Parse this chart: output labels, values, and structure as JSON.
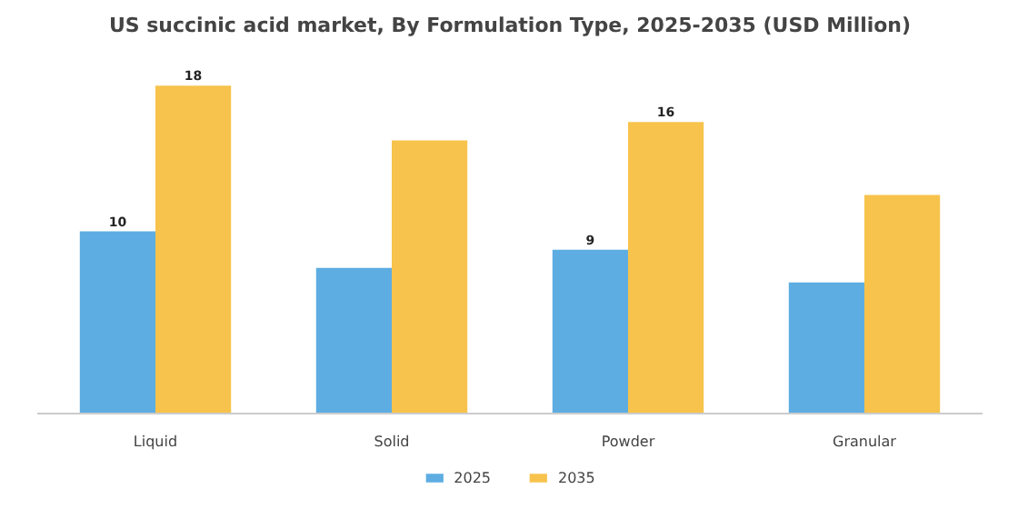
{
  "chart_data": {
    "type": "bar",
    "title": "US succinic acid market, By Formulation Type, 2025-2035 (USD Million)",
    "categories": [
      "Liquid",
      "Solid",
      "Powder",
      "Granular"
    ],
    "series": [
      {
        "name": "2025",
        "color": "#5dade2",
        "values": [
          10,
          8,
          9,
          7.2
        ],
        "value_labels": [
          "10",
          null,
          "9",
          null
        ]
      },
      {
        "name": "2035",
        "color": "#f7c34c",
        "values": [
          18,
          15,
          16,
          12
        ],
        "value_labels": [
          "18",
          null,
          "16",
          null
        ]
      }
    ],
    "legend": "bottom",
    "grid": false,
    "tick_labels": "x"
  }
}
